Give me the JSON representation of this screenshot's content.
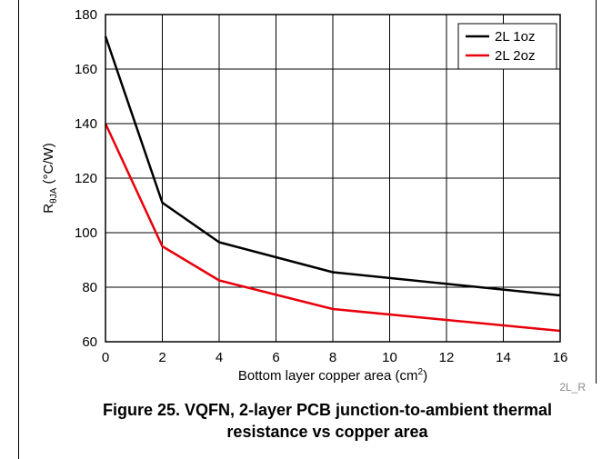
{
  "chart_data": {
    "type": "line",
    "xlabel_main": "Bottom layer copper area (cm",
    "xlabel_sup": "2",
    "xlabel_close": ")",
    "ylabel_main": "R",
    "ylabel_sub": "θJA",
    "ylabel_rest": " (°C/W)",
    "xlim": [
      0,
      16
    ],
    "ylim": [
      60,
      180
    ],
    "x_ticks": [
      0,
      2,
      4,
      6,
      8,
      10,
      12,
      14,
      16
    ],
    "y_ticks": [
      60,
      80,
      100,
      120,
      140,
      160,
      180
    ],
    "grid": true,
    "legend_position": "top-right",
    "series": [
      {
        "name": "2L 1oz",
        "color": "#000000",
        "x": [
          0,
          2,
          4,
          8,
          16
        ],
        "y": [
          172,
          111,
          96.5,
          85.5,
          77
        ]
      },
      {
        "name": "2L 2oz",
        "color": "#e8000b",
        "x": [
          0,
          2,
          4,
          8,
          16
        ],
        "y": [
          140,
          95,
          82.5,
          72,
          64
        ]
      }
    ],
    "note": "2L_R"
  },
  "caption": {
    "line1": "Figure 25. VQFN, 2-layer PCB junction-to-ambient thermal",
    "line2": "resistance vs copper area"
  }
}
